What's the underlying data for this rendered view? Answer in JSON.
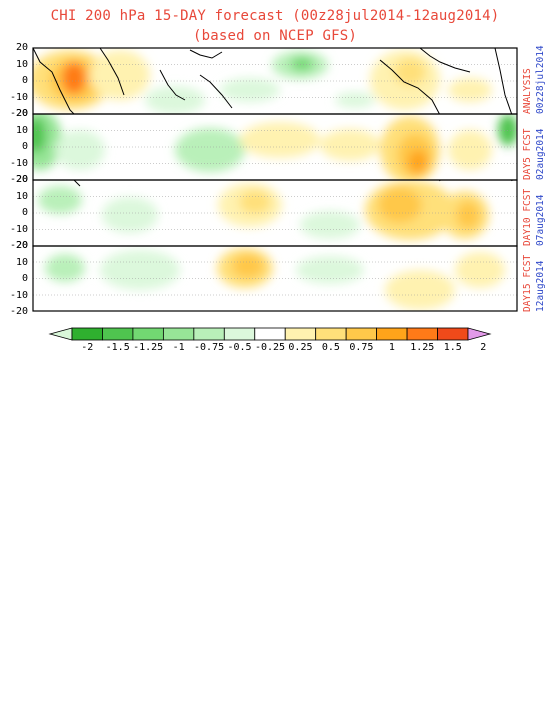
{
  "title": {
    "line1": "CHI 200 hPa 15-DAY forecast (00z28jul2014-12aug2014)",
    "line2": "(based on NCEP GFS)"
  },
  "panels": [
    {
      "label_main": "ANALYSIS",
      "label_date": "00z28jul2014"
    },
    {
      "label_main": "DAY5 FCST",
      "label_date": "02aug2014"
    },
    {
      "label_main": "DAY10 FCST",
      "label_date": "07aug2014"
    },
    {
      "label_main": "DAY15 FCST",
      "label_date": "12aug2014"
    }
  ],
  "y_ticks": [
    "20",
    "10",
    "0",
    "-10",
    "-20"
  ],
  "colorbar": {
    "labels": [
      "-2",
      "-1.5",
      "-1.25",
      "-1",
      "-0.75",
      "-0.5",
      "-0.25",
      "0.25",
      "0.5",
      "0.75",
      "1",
      "1.25",
      "1.5",
      "2"
    ],
    "colors": [
      "#2fb02f",
      "#4fc44f",
      "#72d872",
      "#97e597",
      "#b9f0b9",
      "#dcf8dc",
      "#ffffff",
      "#fff2b0",
      "#ffe07a",
      "#ffc84a",
      "#ffa41a",
      "#ff7a18",
      "#f04a1a"
    ],
    "low_end_color": "#d9f7d9",
    "high_end_color": "#e29ae8"
  }
}
